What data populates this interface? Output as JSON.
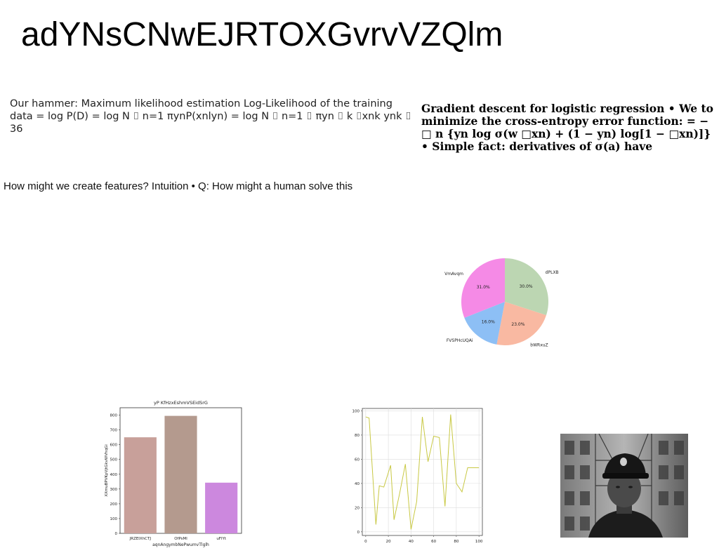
{
  "page": {
    "title": "adYNsCNwEJRTOXGvrvVZQlm",
    "left_text": "Our hammer: Maximum likelihood estimation Log-Likelihood of the training data = log P(D) = log N ⌷ n=1 πynP(xnlyn) = log N ⌷ n=1 ⌷ πyn ⌷ k ⌷xnk ynk ⌷ 36",
    "right_text": "Gradient descent for logistic regression • We to minimize the cross-entropy error function: = − □ n {yn log σ(w □xn) + (1 − yn) log[1 − □xn)]} • Simple fact: derivatives of σ(a) have",
    "mid_text": "How might we create features? Intuition • Q: How might a human solve this"
  },
  "chart_data": [
    {
      "type": "pie",
      "labels": [
        "dPLXB",
        "bWRxuZ",
        "FVSPHcUQAi",
        "VmAvqm"
      ],
      "values": [
        30.0,
        23.0,
        16.0,
        31.0
      ],
      "pct_labels": [
        "30.0%",
        "23.0%",
        "16.0%",
        "31.0%"
      ],
      "colors": [
        "#bcd6b2",
        "#f9b9a2",
        "#8dbff5",
        "#f58ae6"
      ]
    },
    {
      "type": "bar",
      "title": "yP KfHzxEshmVSEidSrG",
      "xlabel": "aqnAngymbNePwumvTlglh",
      "ylabel": "XXmuBPVKpVjtGkvWVhqGi",
      "categories": [
        "JRZEIXhCTJ",
        "OfPsMl",
        "uFlYt"
      ],
      "values": [
        650,
        795,
        343
      ],
      "colors": [
        "#c8a09a",
        "#b49a8e",
        "#cc88de"
      ],
      "ylim": [
        0,
        850
      ],
      "yticks": [
        "0",
        "100",
        "200",
        "300",
        "400",
        "500",
        "600",
        "700",
        "800"
      ]
    },
    {
      "type": "line",
      "x": [
        0,
        3,
        9,
        12,
        16,
        22,
        25,
        30,
        35,
        40,
        45,
        50,
        55,
        60,
        65,
        70,
        75,
        80,
        85,
        90,
        95,
        100
      ],
      "y": [
        95,
        94,
        6,
        38,
        37,
        55,
        10,
        32,
        56,
        2,
        25,
        95,
        58,
        79,
        78,
        21,
        97,
        40,
        33,
        53,
        53,
        53
      ],
      "color": "#c8c843",
      "xlim": [
        -3,
        103
      ],
      "ylim": [
        -3,
        102
      ],
      "xticks": [
        "0",
        "20",
        "40",
        "60",
        "80",
        "100"
      ],
      "yticks": [
        "0",
        "20",
        "40",
        "60",
        "80",
        "100"
      ],
      "grid": true
    }
  ]
}
